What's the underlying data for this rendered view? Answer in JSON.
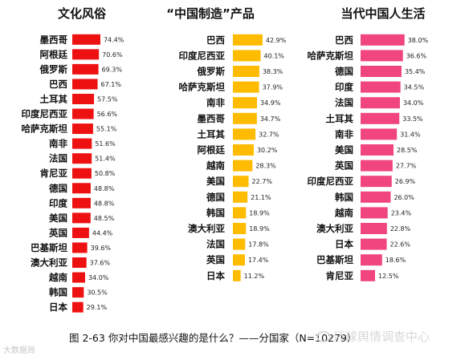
{
  "chart_data": [
    {
      "type": "bar",
      "orientation": "horizontal",
      "title": "文化风俗",
      "categories": [
        "墨西哥",
        "阿根廷",
        "俄罗斯",
        "巴西",
        "土耳其",
        "印度尼西亚",
        "哈萨克斯坦",
        "南非",
        "法国",
        "肯尼亚",
        "德国",
        "印度",
        "美国",
        "英国",
        "巴基斯坦",
        "澳大利亚",
        "越南",
        "韩国",
        "日本"
      ],
      "values": [
        74.4,
        70.6,
        69.3,
        67.1,
        57.5,
        56.6,
        55.1,
        51.6,
        51.4,
        50.8,
        48.8,
        48.8,
        48.5,
        44.4,
        39.6,
        37.6,
        34.0,
        30.5,
        29.1
      ],
      "value_labels": [
        "74.4%",
        "70.6%",
        "69.3%",
        "67.1%",
        "57.5%",
        "56.6%",
        "55.1%",
        "51.6%",
        "51.4%",
        "50.8%",
        "48.8%",
        "48.8%",
        "48.5%",
        "44.4%",
        "39.6%",
        "37.6%",
        "34.0%",
        "30.5%",
        "29.1%"
      ],
      "color": "#ee1111"
    },
    {
      "type": "bar",
      "orientation": "horizontal",
      "title": "“中国制造”产品",
      "categories": [
        "巴西",
        "印度尼西亚",
        "俄罗斯",
        "哈萨克斯坦",
        "南非",
        "墨西哥",
        "土耳其",
        "阿根廷",
        "越南",
        "美国",
        "德国",
        "韩国",
        "澳大利亚",
        "法国",
        "英国",
        "日本"
      ],
      "values": [
        42.9,
        40.1,
        38.3,
        37.9,
        34.9,
        34.7,
        32.7,
        30.2,
        28.3,
        22.7,
        21.1,
        18.9,
        18.9,
        17.8,
        17.4,
        11.2
      ],
      "value_labels": [
        "42.9%",
        "40.1%",
        "38.3%",
        "37.9%",
        "34.9%",
        "34.7%",
        "32.7%",
        "30.2%",
        "28.3%",
        "22.7%",
        "21.1%",
        "18.9%",
        "18.9%",
        "17.8%",
        "17.4%",
        "11.2%"
      ],
      "color": "#ffbb00"
    },
    {
      "type": "bar",
      "orientation": "horizontal",
      "title": "当代中国人生活",
      "categories": [
        "巴西",
        "哈萨克斯坦",
        "德国",
        "印度",
        "法国",
        "土耳其",
        "南非",
        "美国",
        "英国",
        "印度尼西亚",
        "韩国",
        "越南",
        "澳大利亚",
        "日本",
        "巴基斯坦",
        "肯尼亚"
      ],
      "values": [
        38.0,
        36.6,
        35.4,
        34.5,
        34.0,
        33.5,
        31.4,
        28.5,
        27.7,
        26.9,
        26.0,
        23.4,
        22.8,
        22.6,
        18.6,
        12.5
      ],
      "value_labels": [
        "38.0%",
        "36.6%",
        "35.4%",
        "34.5%",
        "34.0%",
        "33.5%",
        "31.4%",
        "28.5%",
        "27.7%",
        "26.9%",
        "26.0%",
        "23.4%",
        "22.8%",
        "22.6%",
        "18.6%",
        "12.5%"
      ],
      "color": "#f0457f"
    }
  ],
  "caption": "图 2-63  你对中国最感兴趣的是什么？——分国家（N=10279）",
  "watermark_right": "环球舆情调查中心",
  "watermark_left": "大数据局"
}
